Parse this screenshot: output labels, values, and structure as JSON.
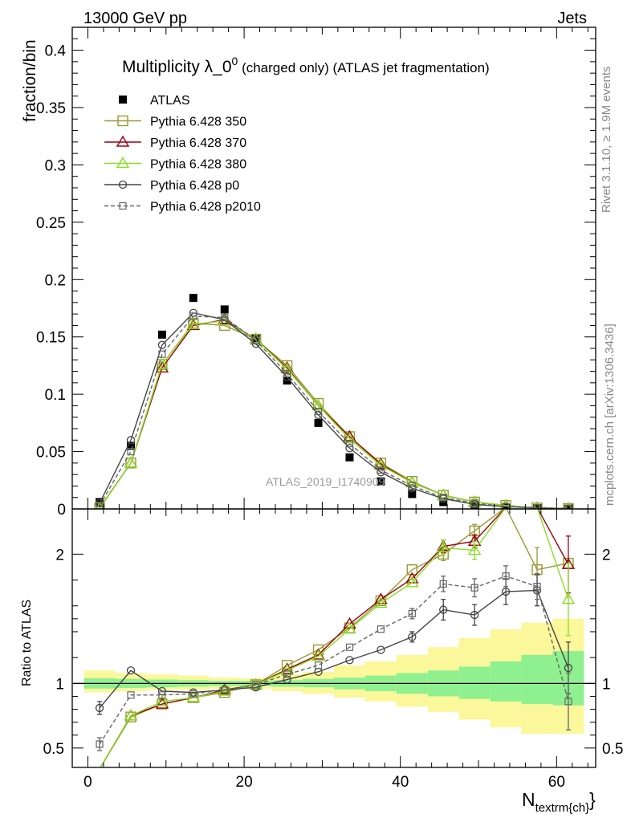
{
  "header": {
    "left": "13000 GeV pp",
    "right": "Jets"
  },
  "title": "Multiplicity λ_0",
  "title_sup": "0",
  "title_rest": " (charged only) (ATLAS jet fragmentation)",
  "side_texts": {
    "rivet": "Rivet 3.1.10, ≥ 1.9M events",
    "mcplots": "mcplots.cern.ch [arXiv:1306.3436]"
  },
  "watermark": "ATLAS_2019_I1740909",
  "colors": {
    "ATLAS": "#000000",
    "p350": "#999933",
    "p370": "#990011",
    "p380": "#88dd22",
    "p0": "#444444",
    "p2010": "#666666",
    "band_inner": "#8ff08f",
    "band_outer": "#fbf79b"
  },
  "chart_data": [
    {
      "type": "line",
      "panel": "main",
      "ylabel": "fraction/bin",
      "xlim": [
        -2,
        65
      ],
      "ylim": [
        0,
        0.42
      ],
      "yticks": [
        0,
        0.05,
        0.1,
        0.15,
        0.2,
        0.25,
        0.3,
        0.35,
        0.4
      ],
      "ytick_labels": [
        "0",
        "0.05",
        "0.1",
        "0.15",
        "0.2",
        "0.25",
        "0.3",
        "0.35",
        "0.4"
      ],
      "x": [
        1.5,
        5.5,
        9.5,
        13.5,
        17.5,
        21.5,
        25.5,
        29.5,
        33.5,
        37.5,
        41.5,
        45.5,
        49.5,
        53.5,
        57.5,
        61.5
      ],
      "series": [
        {
          "name": "ATLAS",
          "key": "ATLAS",
          "marker": "square-filled",
          "line": "none",
          "values": [
            0.006,
            0.055,
            0.152,
            0.184,
            0.174,
            0.149,
            0.112,
            0.075,
            0.045,
            0.024,
            0.013,
            0.006,
            0.003,
            0.001,
            0.0005,
            0.0002
          ]
        },
        {
          "name": "Pythia 6.428 350",
          "key": "p350",
          "marker": "square-open",
          "line": "solid",
          "values": [
            0.001,
            0.04,
            0.126,
            0.162,
            0.16,
            0.148,
            0.125,
            0.092,
            0.063,
            0.04,
            0.024,
            0.012,
            0.006,
            0.003,
            0.0009,
            0.0004
          ]
        },
        {
          "name": "Pythia 6.428 370",
          "key": "p370",
          "marker": "triangle-open",
          "line": "solid",
          "values": [
            0.0005,
            0.04,
            0.123,
            0.16,
            0.165,
            0.148,
            0.123,
            0.09,
            0.063,
            0.039,
            0.023,
            0.012,
            0.006,
            0.003,
            0.0009,
            0.0004
          ]
        },
        {
          "name": "Pythia 6.428 380",
          "key": "p380",
          "marker": "triangle-open",
          "line": "solid",
          "values": [
            0.0005,
            0.04,
            0.126,
            0.161,
            0.164,
            0.148,
            0.122,
            0.09,
            0.061,
            0.038,
            0.023,
            0.012,
            0.006,
            0.003,
            0.0009,
            0.0003
          ]
        },
        {
          "name": "Pythia 6.428 p0",
          "key": "p0",
          "marker": "circle-open",
          "line": "solid",
          "values": [
            0.005,
            0.06,
            0.143,
            0.171,
            0.165,
            0.144,
            0.115,
            0.082,
            0.053,
            0.032,
            0.018,
            0.009,
            0.004,
            0.002,
            0.0008,
            0.0002
          ]
        },
        {
          "name": "Pythia 6.428 p2010",
          "key": "p2010",
          "marker": "square-open-small",
          "line": "dashed",
          "values": [
            0.003,
            0.05,
            0.135,
            0.168,
            0.167,
            0.147,
            0.118,
            0.085,
            0.057,
            0.034,
            0.02,
            0.01,
            0.005,
            0.002,
            0.0008,
            0.0002
          ]
        }
      ]
    },
    {
      "type": "line",
      "panel": "ratio",
      "ylabel": "Ratio to ATLAS",
      "xlabel": "N",
      "xlabel_sub": "textrm{ch}",
      "xlim": [
        -2,
        65
      ],
      "ylim": [
        0.35,
        2.35
      ],
      "xticks": [
        0,
        20,
        40,
        60
      ],
      "xtick_labels": [
        "0",
        "20",
        "40",
        "60"
      ],
      "yticks": [
        0.5,
        1,
        2
      ],
      "ytick_labels": [
        "0.5",
        "1",
        "2"
      ],
      "x": [
        1.5,
        5.5,
        9.5,
        13.5,
        17.5,
        21.5,
        25.5,
        29.5,
        33.5,
        37.5,
        41.5,
        45.5,
        49.5,
        53.5,
        57.5,
        61.5
      ],
      "bands": {
        "inner": [
          [
            0.96,
            1.04
          ],
          [
            0.965,
            1.035
          ],
          [
            0.97,
            1.03
          ],
          [
            0.975,
            1.025
          ],
          [
            0.98,
            1.02
          ],
          [
            0.98,
            1.02
          ],
          [
            0.975,
            1.025
          ],
          [
            0.97,
            1.035
          ],
          [
            0.955,
            1.045
          ],
          [
            0.94,
            1.06
          ],
          [
            0.92,
            1.08
          ],
          [
            0.9,
            1.1
          ],
          [
            0.88,
            1.13
          ],
          [
            0.86,
            1.17
          ],
          [
            0.84,
            1.22
          ],
          [
            0.83,
            1.25
          ]
        ],
        "outer": [
          [
            0.93,
            1.1
          ],
          [
            0.94,
            1.08
          ],
          [
            0.95,
            1.07
          ],
          [
            0.95,
            1.06
          ],
          [
            0.96,
            1.045
          ],
          [
            0.96,
            1.04
          ],
          [
            0.94,
            1.07
          ],
          [
            0.92,
            1.09
          ],
          [
            0.89,
            1.14
          ],
          [
            0.86,
            1.17
          ],
          [
            0.82,
            1.22
          ],
          [
            0.78,
            1.28
          ],
          [
            0.72,
            1.35
          ],
          [
            0.66,
            1.42
          ],
          [
            0.61,
            1.47
          ],
          [
            0.61,
            1.5
          ]
        ]
      },
      "series": [
        {
          "name": "Pythia 6.428 350",
          "key": "p350",
          "marker": "square-open",
          "values": [
            0.2,
            0.74,
            0.84,
            0.89,
            0.93,
            0.99,
            1.14,
            1.26,
            1.43,
            1.64,
            1.88,
            2.0,
            2.18,
            2.55,
            1.88,
            1.93
          ],
          "err": [
            0,
            0,
            0,
            0,
            0,
            0,
            0,
            0,
            0,
            0,
            0,
            0.05,
            0.05,
            0,
            0.17,
            0
          ]
        },
        {
          "name": "Pythia 6.428 370",
          "key": "p370",
          "marker": "triangle-open",
          "values": [
            0.15,
            0.75,
            0.84,
            0.89,
            0.95,
            0.99,
            1.11,
            1.22,
            1.46,
            1.65,
            1.81,
            2.06,
            2.1,
            2.5,
            2.5,
            1.92
          ],
          "err": [
            0,
            0,
            0,
            0,
            0,
            0,
            0,
            0,
            0,
            0,
            0,
            0.05,
            0.05,
            0,
            0,
            0.22
          ]
        },
        {
          "name": "Pythia 6.428 380",
          "key": "p380",
          "marker": "triangle-open",
          "values": [
            0.15,
            0.75,
            0.86,
            0.89,
            0.94,
            0.99,
            1.1,
            1.21,
            1.42,
            1.62,
            1.78,
            2.05,
            2.03,
            2.5,
            2.5,
            1.65
          ],
          "err": [
            0,
            0,
            0,
            0,
            0,
            0,
            0,
            0,
            0,
            0,
            0,
            0.06,
            0.07,
            0,
            0,
            0.28
          ]
        },
        {
          "name": "Pythia 6.428 p0",
          "key": "p0",
          "marker": "circle-open",
          "values": [
            0.81,
            1.1,
            0.94,
            0.93,
            0.95,
            0.97,
            1.03,
            1.09,
            1.18,
            1.26,
            1.36,
            1.57,
            1.53,
            1.71,
            1.72,
            1.12
          ],
          "err": [
            0.05,
            0,
            0,
            0,
            0,
            0,
            0,
            0,
            0,
            0,
            0.04,
            0.08,
            0.08,
            0.1,
            0.12,
            0.2
          ]
        },
        {
          "name": "Pythia 6.428 p2010",
          "key": "p2010",
          "marker": "square-open-small",
          "dashed": true,
          "values": [
            0.53,
            0.91,
            0.91,
            0.92,
            0.95,
            0.99,
            1.07,
            1.14,
            1.28,
            1.42,
            1.54,
            1.77,
            1.74,
            1.83,
            1.75,
            0.86
          ],
          "err": [
            0.05,
            0,
            0,
            0,
            0,
            0,
            0,
            0,
            0,
            0,
            0.04,
            0.06,
            0.07,
            0.08,
            0.1,
            0.22
          ]
        }
      ]
    }
  ]
}
